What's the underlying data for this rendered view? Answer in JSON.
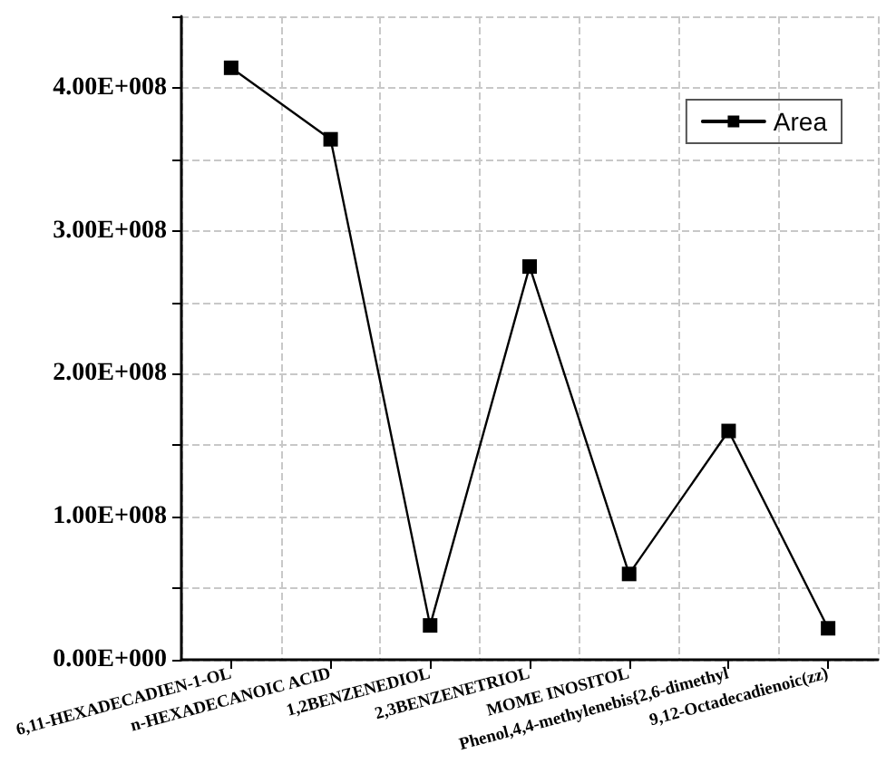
{
  "chart_data": {
    "type": "line",
    "categories": [
      "6,11-HEXADECADIEN-1-OL",
      "n-HEXADECANOIC ACID",
      "1,2BENZENEDIOL",
      "2,3BENZENETRIOL",
      "MOME INOSITOL",
      "Phenol,4,4-methylenebis{2,6-dimethyl",
      "9,12-Octadecadienoic(zz)"
    ],
    "series": [
      {
        "name": "Area",
        "color": "#000000",
        "values": [
          414000000,
          364000000,
          24000000,
          275000000,
          60000000,
          160000000,
          22000000
        ]
      }
    ],
    "ylim": [
      0,
      450000000
    ],
    "yticks": [
      {
        "value": 0,
        "label": "0.00E+000"
      },
      {
        "value": 50000000,
        "label": null
      },
      {
        "value": 100000000,
        "label": "1.00E+008"
      },
      {
        "value": 150000000,
        "label": null
      },
      {
        "value": 200000000,
        "label": "2.00E+008"
      },
      {
        "value": 250000000,
        "label": null
      },
      {
        "value": 300000000,
        "label": "3.00E+008"
      },
      {
        "value": 350000000,
        "label": null
      },
      {
        "value": 400000000,
        "label": "4.00E+008"
      }
    ],
    "grid": true,
    "legend": "top right",
    "marker": "square",
    "line_style": "solid"
  }
}
